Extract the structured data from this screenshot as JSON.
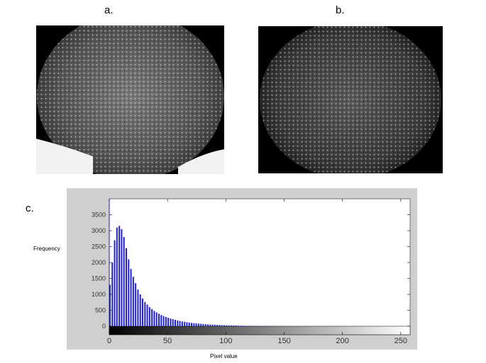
{
  "panels": {
    "a_label": "a.",
    "b_label": "b.",
    "c_label": "c."
  },
  "colors": {
    "bar": "#1f1fd6",
    "axis": "#1f1fd6",
    "figure_bg": "#cfcfcf",
    "plot_bg": "#ffffff"
  },
  "chart_data": {
    "type": "bar",
    "title": "",
    "xlabel": "Pixel value",
    "ylabel": "Frequency",
    "xlim": [
      0,
      255
    ],
    "ylim": [
      0,
      4000
    ],
    "xticks": [
      0,
      50,
      100,
      150,
      200,
      250
    ],
    "yticks": [
      0,
      500,
      1000,
      1500,
      2000,
      2500,
      3000,
      3500
    ],
    "colorbar": "grayscale 0-255 beneath x-axis",
    "x": [
      0,
      2,
      4,
      6,
      8,
      10,
      12,
      14,
      16,
      18,
      20,
      22,
      24,
      26,
      28,
      30,
      32,
      34,
      36,
      38,
      40,
      42,
      44,
      46,
      48,
      50,
      52,
      54,
      56,
      58,
      60,
      62,
      64,
      66,
      68,
      70,
      72,
      74,
      76,
      78,
      80,
      82,
      84,
      86,
      88,
      90,
      92,
      94,
      96,
      98,
      100,
      102,
      104,
      106,
      108,
      110,
      112,
      114,
      116,
      118,
      120,
      122,
      124,
      126,
      128,
      130,
      132,
      134,
      136,
      138,
      140,
      142,
      144,
      146,
      148,
      150
    ],
    "values": [
      1300,
      2000,
      2700,
      3100,
      3150,
      3050,
      2800,
      2450,
      2100,
      1800,
      1550,
      1350,
      1150,
      1000,
      870,
      760,
      680,
      600,
      540,
      480,
      430,
      390,
      350,
      320,
      290,
      265,
      240,
      220,
      200,
      180,
      165,
      150,
      138,
      125,
      115,
      105,
      96,
      88,
      80,
      74,
      68,
      62,
      57,
      52,
      48,
      44,
      40,
      37,
      34,
      31,
      28,
      26,
      24,
      22,
      20,
      18,
      16,
      15,
      14,
      13,
      12,
      11,
      10,
      9,
      8,
      7,
      6,
      6,
      5,
      5,
      4,
      4,
      3,
      3,
      2,
      2
    ]
  }
}
